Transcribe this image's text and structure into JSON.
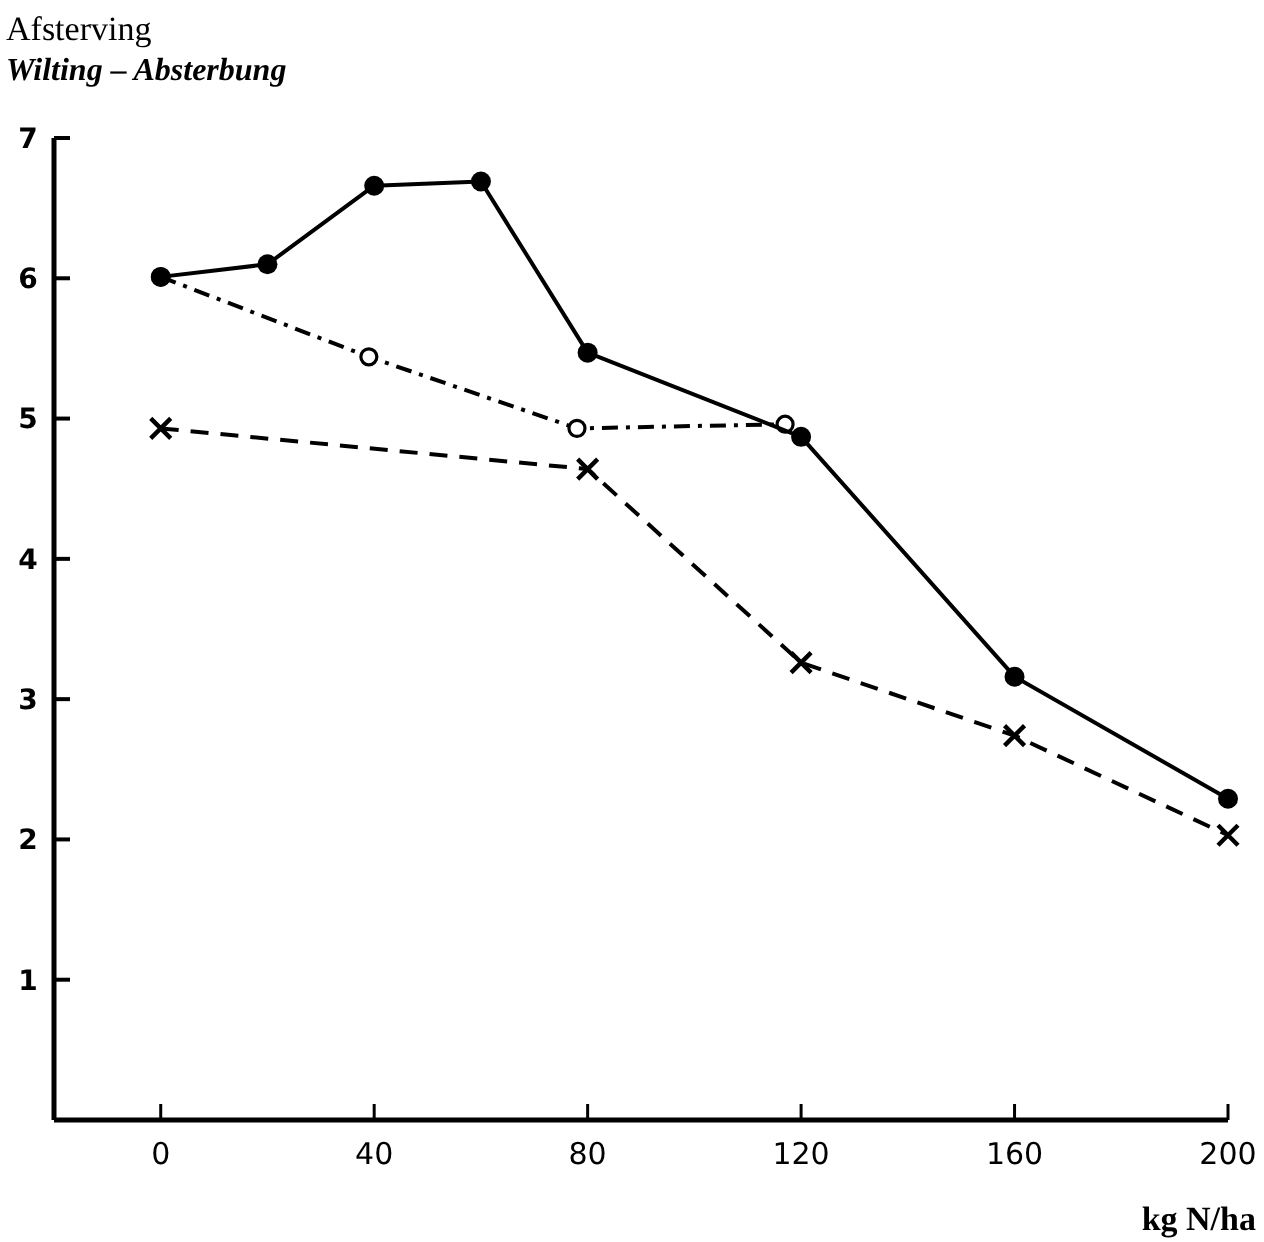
{
  "chart_data": {
    "type": "line",
    "title": "Afsterving",
    "subtitle": "Wilting – Absterbung",
    "xlabel": "kg N/ha",
    "xlim": [
      -20,
      200
    ],
    "xticks": [
      0,
      40,
      80,
      120,
      160,
      200
    ],
    "ylim": [
      0,
      7
    ],
    "yticks": [
      1,
      2,
      3,
      4,
      5,
      6,
      7
    ],
    "grid": false,
    "series": [
      {
        "color": "#000000",
        "marker": "circle",
        "line_style": "solid",
        "x": [
          0,
          20,
          40,
          60,
          80,
          120,
          160,
          200
        ],
        "values": [
          6.01,
          6.1,
          6.66,
          6.69,
          5.47,
          4.87,
          3.16,
          2.29
        ]
      },
      {
        "color": "#000000",
        "marker": "circle-open",
        "line_style": "dashdot",
        "x": [
          0,
          39,
          78,
          117
        ],
        "values": [
          6.01,
          5.44,
          4.93,
          4.96
        ]
      },
      {
        "color": "#000000",
        "marker": "cross",
        "line_style": "dashed",
        "x": [
          0,
          80,
          120,
          160,
          200
        ],
        "values": [
          4.93,
          4.64,
          3.26,
          2.74,
          2.03
        ]
      }
    ]
  }
}
